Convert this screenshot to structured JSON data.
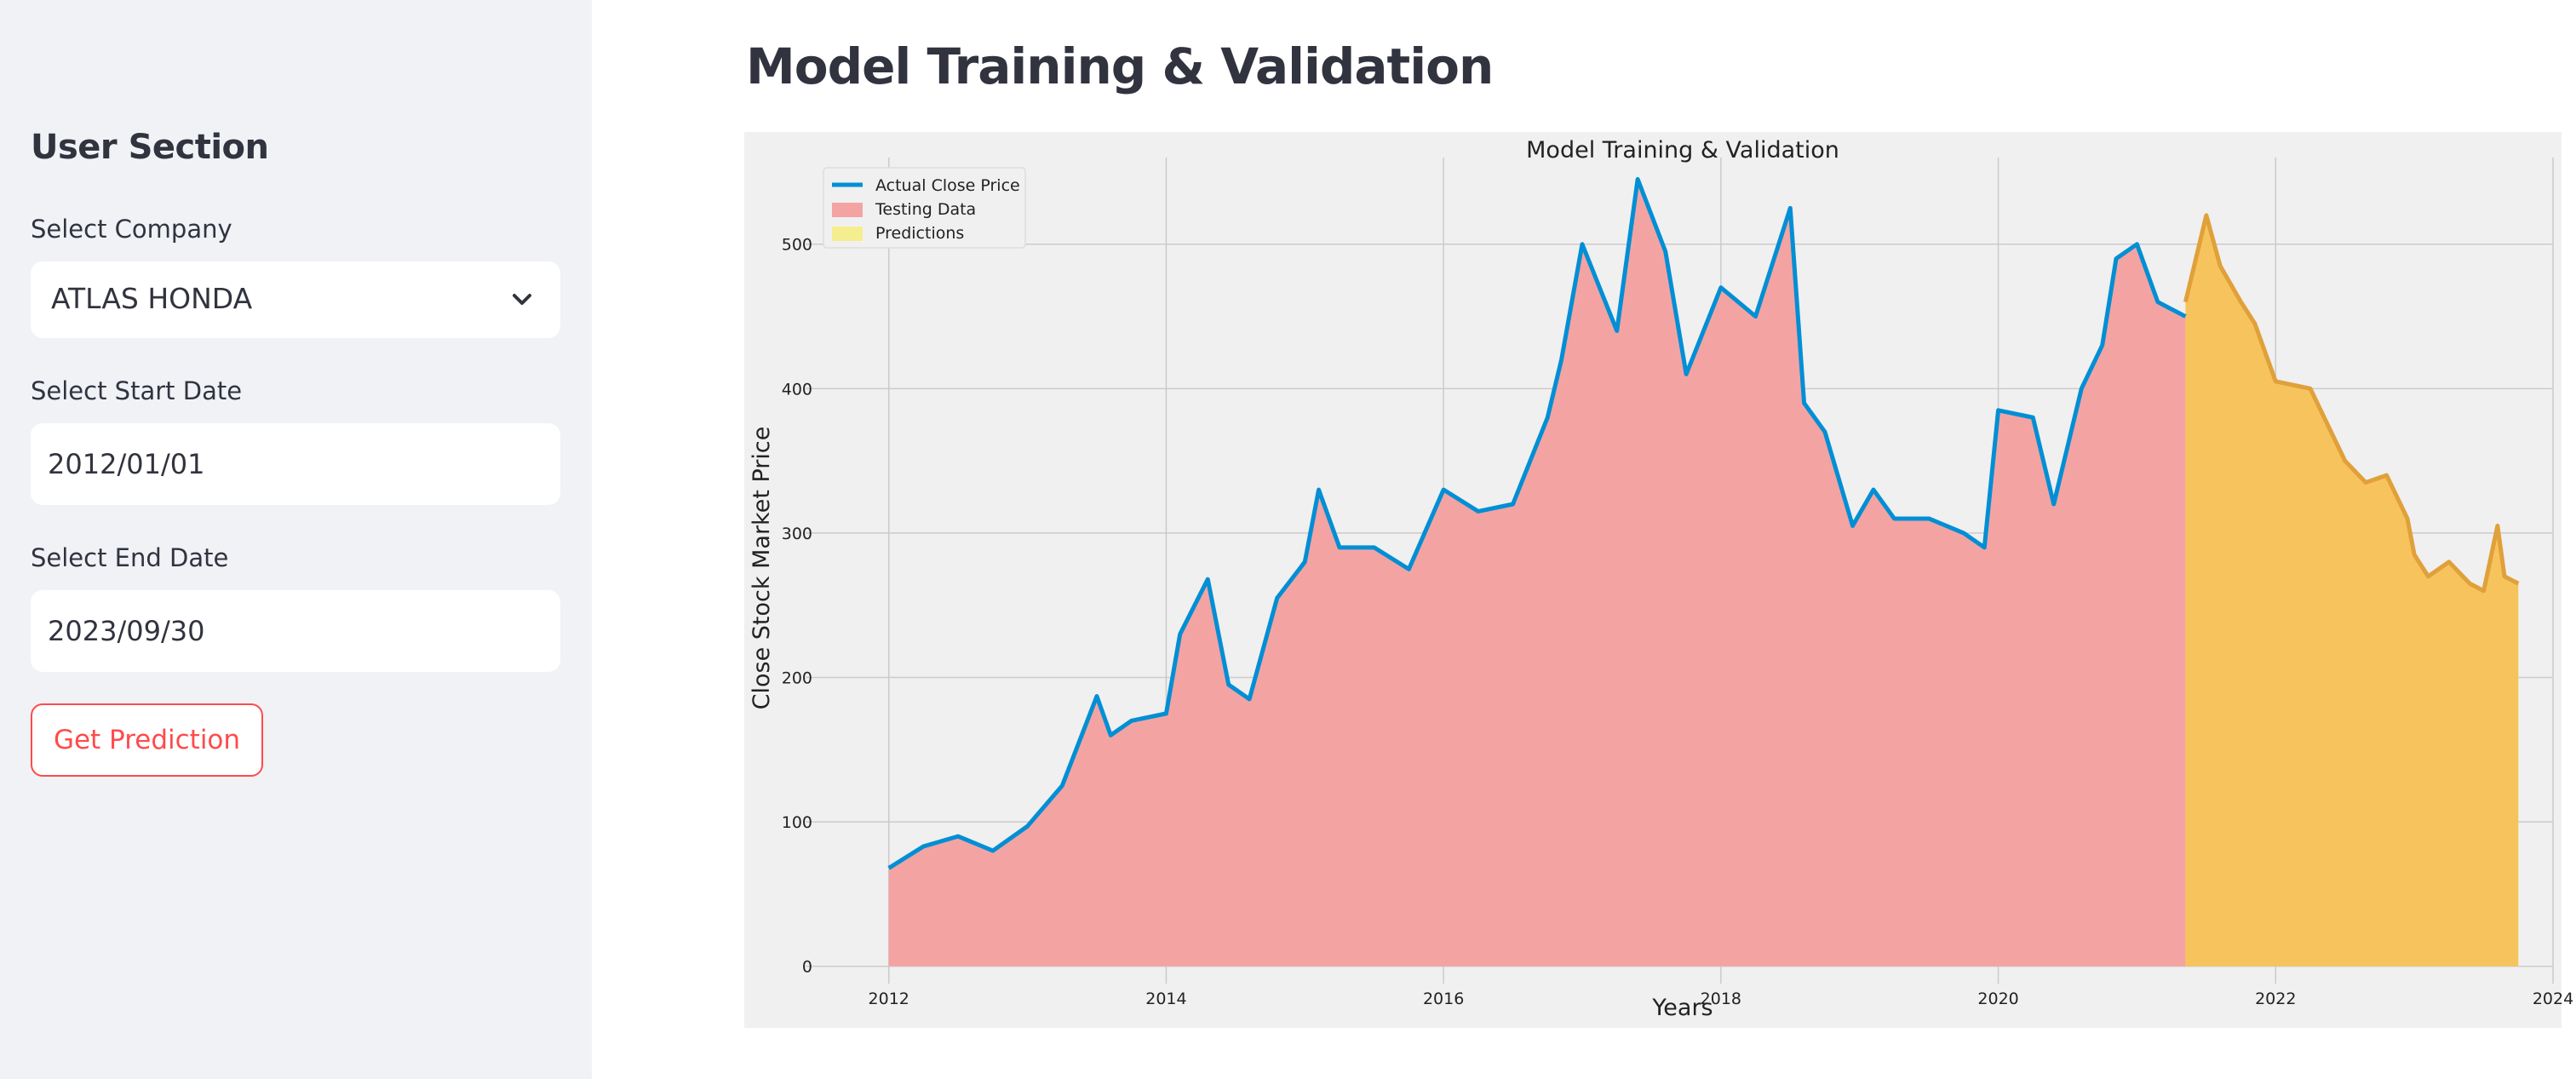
{
  "sidebar": {
    "title": "User Section",
    "company": {
      "label": "Select Company",
      "value": "ATLAS HONDA"
    },
    "start_date": {
      "label": "Select Start Date",
      "value": "2012/01/01"
    },
    "end_date": {
      "label": "Select End Date",
      "value": "2023/09/30"
    },
    "button_label": "Get Prediction"
  },
  "main": {
    "title": "Model Training & Validation"
  },
  "colors": {
    "accent": "#ff4b4b",
    "actual_line": "#008fd5",
    "testing_fill": "#f4a3a3",
    "predictions_fill": "#f7c35c",
    "predictions_line": "#e0a03a",
    "legend_predictions_swatch": "#f5ee8f"
  },
  "chart_data": {
    "type": "line",
    "title": "Model Training & Validation",
    "xlabel": "Years",
    "ylabel": "Close Stock Market Price",
    "xlim": [
      2011.4,
      2024.0
    ],
    "ylim": [
      -12,
      560
    ],
    "xticks": [
      2012,
      2014,
      2016,
      2018,
      2020,
      2022,
      2024
    ],
    "yticks": [
      0,
      100,
      200,
      300,
      400,
      500
    ],
    "grid": true,
    "legend_position": "top-left",
    "legend": [
      "Actual Close Price",
      "Testing Data",
      "Predictions"
    ],
    "series": [
      {
        "name": "Actual Close Price",
        "x": [
          2012.0,
          2012.25,
          2012.5,
          2012.75,
          2013.0,
          2013.25,
          2013.5,
          2013.6,
          2013.75,
          2014.0,
          2014.1,
          2014.3,
          2014.45,
          2014.6,
          2014.8,
          2015.0,
          2015.1,
          2015.25,
          2015.5,
          2015.75,
          2016.0,
          2016.25,
          2016.5,
          2016.75,
          2016.85,
          2017.0,
          2017.25,
          2017.4,
          2017.6,
          2017.75,
          2018.0,
          2018.25,
          2018.5,
          2018.6,
          2018.75,
          2018.95,
          2019.1,
          2019.25,
          2019.5,
          2019.75,
          2019.9,
          2020.0,
          2020.25,
          2020.4,
          2020.6,
          2020.75,
          2020.85,
          2021.0,
          2021.15,
          2021.35
        ],
        "y": [
          68,
          83,
          90,
          80,
          97,
          125,
          187,
          160,
          170,
          175,
          230,
          268,
          195,
          185,
          255,
          280,
          330,
          290,
          290,
          275,
          330,
          315,
          320,
          380,
          420,
          500,
          440,
          545,
          495,
          410,
          470,
          450,
          525,
          390,
          370,
          305,
          330,
          310,
          310,
          300,
          290,
          385,
          380,
          320,
          400,
          430,
          490,
          500,
          460,
          450
        ]
      },
      {
        "name": "Predictions",
        "x": [
          2021.35,
          2021.5,
          2021.6,
          2021.75,
          2021.85,
          2022.0,
          2022.25,
          2022.5,
          2022.65,
          2022.8,
          2022.95,
          2023.0,
          2023.1,
          2023.25,
          2023.4,
          2023.5,
          2023.6,
          2023.65,
          2023.75
        ],
        "y": [
          460,
          520,
          485,
          460,
          445,
          405,
          400,
          350,
          335,
          340,
          310,
          285,
          270,
          280,
          265,
          260,
          305,
          270,
          265
        ]
      }
    ]
  }
}
